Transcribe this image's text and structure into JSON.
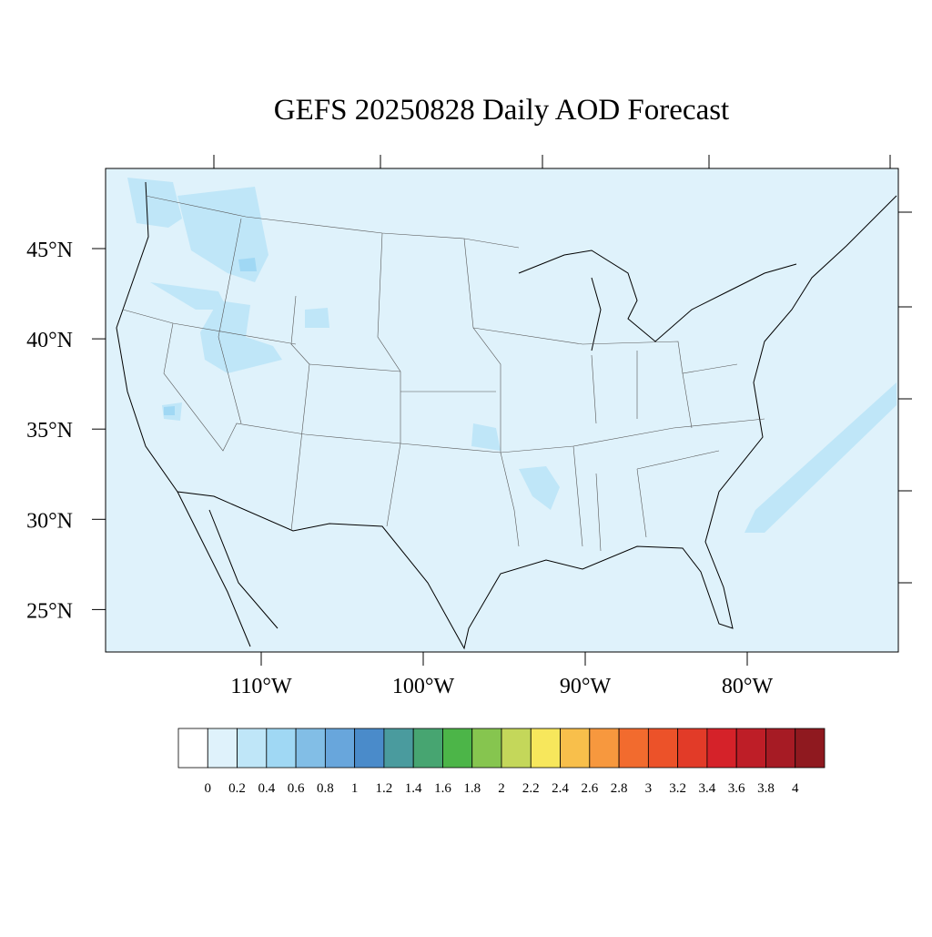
{
  "title": "GEFS 20250828 Daily AOD Forecast",
  "lat_labels": [
    "45°N",
    "40°N",
    "35°N",
    "30°N",
    "25°N"
  ],
  "lon_labels": [
    "110°W",
    "100°W",
    "90°W",
    "80°W"
  ],
  "colorbar": {
    "levels": [
      0,
      0.2,
      0.4,
      0.6,
      0.8,
      1,
      1.2,
      1.4,
      1.6,
      1.8,
      2,
      2.2,
      2.4,
      2.6,
      2.8,
      3,
      3.2,
      3.4,
      3.6,
      3.8,
      4
    ],
    "colors": [
      "#ffffff",
      "#dff2fb",
      "#bfe6f8",
      "#a0d8f4",
      "#82bee6",
      "#68a6dc",
      "#4a8bca",
      "#4a9b9e",
      "#47a571",
      "#4cb548",
      "#86c54f",
      "#c4d75a",
      "#f7e75c",
      "#f8bf4b",
      "#f7983e",
      "#f26b2e",
      "#ec5229",
      "#e23b28",
      "#d52229",
      "#be1e27",
      "#a61b24",
      "#8f191f"
    ]
  }
}
